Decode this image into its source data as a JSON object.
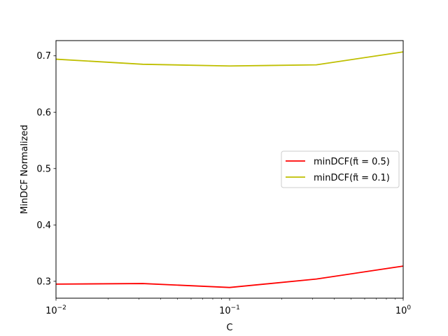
{
  "chart_data": {
    "type": "line",
    "title": "",
    "xlabel": "C",
    "ylabel": "MinDCF Normalized",
    "xscale": "log",
    "xlim": [
      0.01,
      1
    ],
    "ylim": [
      0.27,
      0.727
    ],
    "grid": false,
    "legend_position": "center-right",
    "x_ticks": [
      {
        "value": 0.01,
        "base": "10",
        "exp": "−2"
      },
      {
        "value": 0.1,
        "base": "10",
        "exp": "−1"
      },
      {
        "value": 1,
        "base": "10",
        "exp": "0"
      }
    ],
    "y_ticks": [
      {
        "value": 0.3,
        "label": "0.3"
      },
      {
        "value": 0.4,
        "label": "0.4"
      },
      {
        "value": 0.5,
        "label": "0.5"
      },
      {
        "value": 0.6,
        "label": "0.6"
      },
      {
        "value": 0.7,
        "label": "0.7"
      }
    ],
    "x": [
      0.01,
      0.0316,
      0.1,
      0.316,
      1
    ],
    "series": [
      {
        "name": "minDCF(π̃ = 0.5)",
        "color": "#ff0000",
        "values": [
          0.295,
          0.296,
          0.289,
          0.304,
          0.327
        ]
      },
      {
        "name": "minDCF(π̃ = 0.1)",
        "color": "#bfbf00",
        "values": [
          0.694,
          0.685,
          0.682,
          0.684,
          0.707
        ]
      }
    ]
  }
}
